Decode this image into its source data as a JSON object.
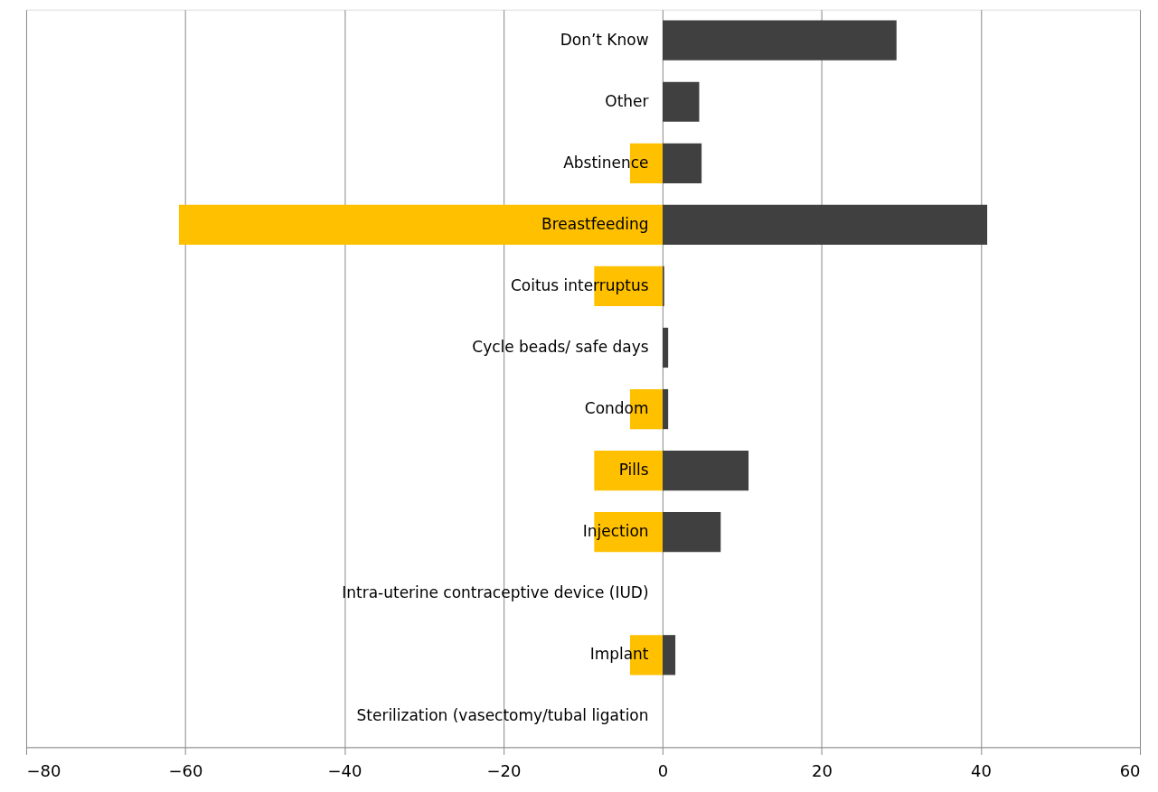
{
  "chart_data": {
    "type": "bar",
    "orientation": "horizontal",
    "categories": [
      "Don’t Know",
      "Other",
      "Abstinence",
      "Breastfeeding",
      "Coitus interruptus",
      "Cycle beads/ safe days",
      "Condom",
      "Pills",
      "Injection",
      "Intra-uterine contraceptive device (IUD)",
      "Implant",
      "Sterilization (vasectomy/tubal ligation"
    ],
    "series": [
      {
        "color": "#ffc000",
        "values": [
          0,
          0,
          -4.1,
          -60.8,
          -8.6,
          0,
          -4.1,
          -8.6,
          -8.6,
          0,
          -4.1,
          0
        ]
      },
      {
        "color": "#404040",
        "values": [
          29.4,
          4.6,
          4.9,
          40.8,
          0.2,
          0.7,
          0.7,
          10.8,
          7.3,
          0,
          1.6,
          0
        ]
      }
    ],
    "xlim": [
      -80,
      60
    ],
    "xticks": [
      -80,
      -60,
      -40,
      -20,
      0,
      20,
      40,
      60
    ],
    "grid": "x",
    "stacked": true
  }
}
